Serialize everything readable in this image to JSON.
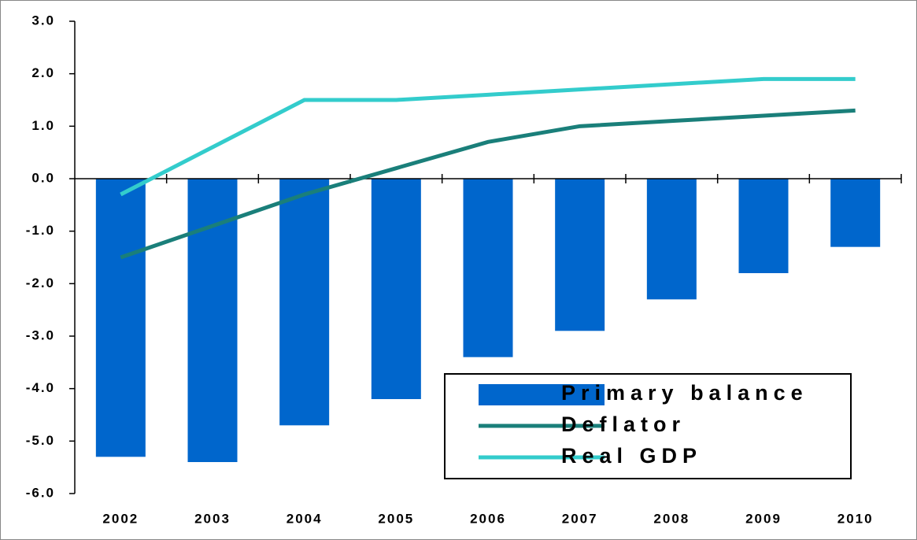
{
  "chart_data": {
    "type": "bar-line",
    "categories": [
      "2002",
      "2003",
      "2004",
      "2005",
      "2006",
      "2007",
      "2008",
      "2009",
      "2010"
    ],
    "series": [
      {
        "name": "Primary balance",
        "type": "bar",
        "color": "#0066cc",
        "values": [
          -5.3,
          -5.4,
          -4.7,
          -4.2,
          -3.4,
          -2.9,
          -2.3,
          -1.8,
          -1.3
        ]
      },
      {
        "name": "Deflator",
        "type": "line",
        "color": "#1a7f7a",
        "values": [
          -1.5,
          -0.9,
          -0.3,
          0.2,
          0.7,
          1.0,
          1.1,
          1.2,
          1.3
        ]
      },
      {
        "name": "Real GDP",
        "type": "line",
        "color": "#33cccc",
        "values": [
          -0.3,
          0.6,
          1.5,
          1.5,
          1.6,
          1.7,
          1.8,
          1.9,
          1.9
        ]
      }
    ],
    "ylim": [
      -6,
      3
    ],
    "yticks": [
      {
        "value": -6,
        "label": "-6.0"
      },
      {
        "value": -5,
        "label": "-5.0"
      },
      {
        "value": -4,
        "label": "-4.0"
      },
      {
        "value": -3,
        "label": "-3.0"
      },
      {
        "value": -2,
        "label": "-2.0"
      },
      {
        "value": -1,
        "label": "-1.0"
      },
      {
        "value": 0,
        "label": "0.0"
      },
      {
        "value": 1,
        "label": "1.0"
      },
      {
        "value": 2,
        "label": "2.0"
      },
      {
        "value": 3,
        "label": "3.0"
      }
    ],
    "grid": false,
    "legend": "lower right"
  }
}
